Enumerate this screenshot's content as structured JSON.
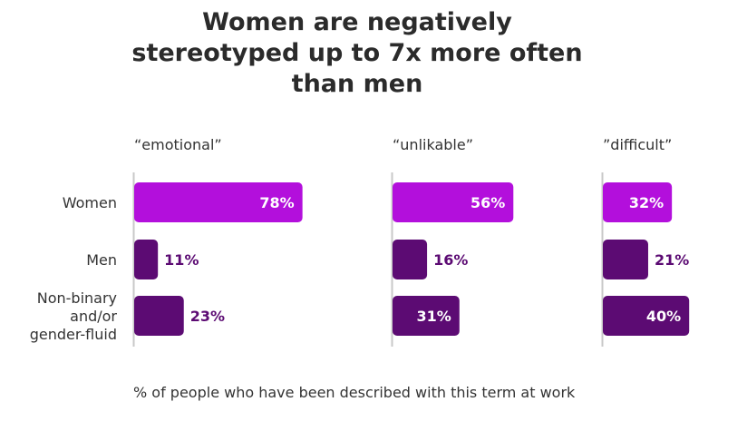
{
  "chart_data": {
    "type": "bar",
    "orientation": "horizontal",
    "title_lines": [
      "Women are negatively",
      "stereotyped up to 7x more often",
      "than men"
    ],
    "categories": [
      "Women",
      "Men",
      "Non-binary and/or gender-fluid"
    ],
    "category_label_lines": [
      [
        "Women"
      ],
      [
        "Men"
      ],
      [
        "Non-binary",
        "and/or",
        "gender-fluid"
      ]
    ],
    "panels": [
      {
        "term": "“emotional”",
        "values": [
          78,
          11,
          23
        ]
      },
      {
        "term": "“unlikable”",
        "values": [
          56,
          16,
          31
        ]
      },
      {
        "term": "”difficult”",
        "values": [
          32,
          21,
          40
        ]
      }
    ],
    "value_suffix": "%",
    "footnote": "% of people who have been described with this term at work",
    "colors": {
      "Women": "#b30fdc",
      "Men": "#5c0b73",
      "Non-binary and/or gender-fluid": "#5c0b73"
    },
    "grid": false,
    "legend": "none"
  }
}
